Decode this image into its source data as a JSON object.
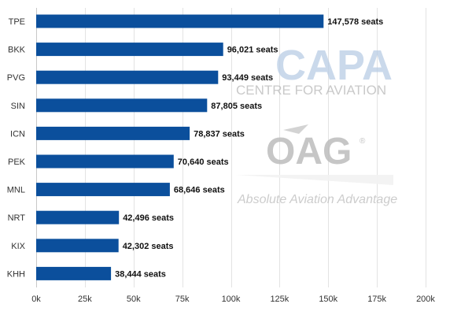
{
  "chart_data": {
    "type": "bar",
    "orientation": "horizontal",
    "categories": [
      "TPE",
      "BKK",
      "PVG",
      "SIN",
      "ICN",
      "PEK",
      "MNL",
      "NRT",
      "KIX",
      "KHH"
    ],
    "values": [
      147578,
      96021,
      93449,
      87805,
      78837,
      70640,
      68646,
      42496,
      42302,
      38444
    ],
    "data_labels": [
      "147,578 seats",
      "96,021 seats",
      "93,449 seats",
      "87,805 seats",
      "78,837 seats",
      "70,640 seats",
      "68,646 seats",
      "42,496 seats",
      "42,302 seats",
      "38,444 seats"
    ],
    "x_ticks": [
      0,
      25000,
      50000,
      75000,
      100000,
      125000,
      150000,
      175000,
      200000
    ],
    "x_tick_labels": [
      "0k",
      "25k",
      "50k",
      "75k",
      "100k",
      "125k",
      "150k",
      "175k",
      "200k"
    ],
    "xlim": [
      0,
      200000
    ],
    "title": "",
    "xlabel": "",
    "ylabel": "",
    "grid": "vertical",
    "bar_color": "#0b4f9c"
  },
  "watermarks": {
    "capa_logo_text": "CAPA",
    "capa_subtitle": "CENTRE FOR AVIATION",
    "oag_logo_text": "OAG",
    "oag_registered_mark": "®",
    "oag_tagline": "Absolute Aviation Advantage"
  }
}
